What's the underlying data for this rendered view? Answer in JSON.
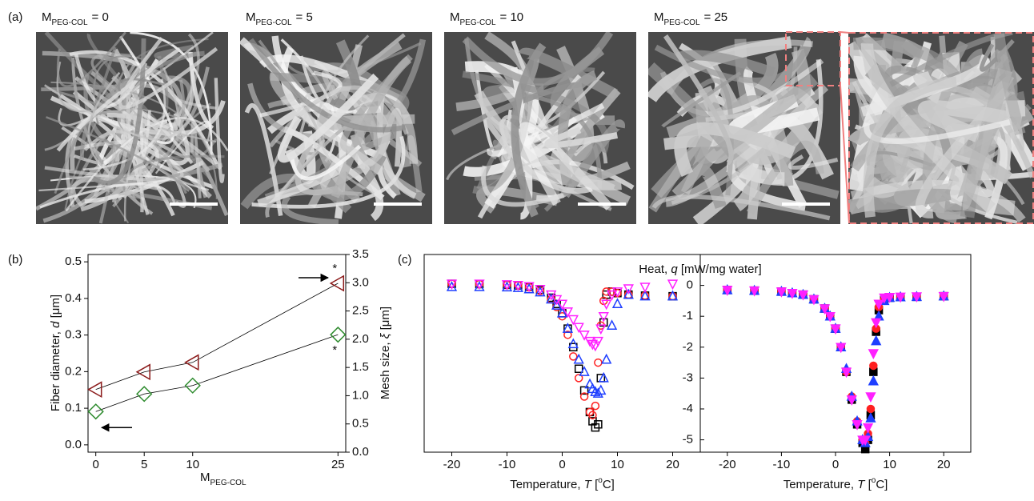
{
  "figure_a": {
    "panel_label": "(a)",
    "images": [
      {
        "symbol": "M",
        "subscript": "PEG-COL",
        "rest": "= 0"
      },
      {
        "symbol": "M",
        "subscript": "PEG-COL",
        "rest": "= 5"
      },
      {
        "symbol": "M",
        "subscript": "PEG-COL",
        "rest": "= 10"
      },
      {
        "symbol": "M",
        "subscript": "PEG-COL",
        "rest": "= 25"
      }
    ]
  },
  "chart_data": [
    {
      "type": "line",
      "panel_label": "(b)",
      "x": [
        0,
        5,
        10,
        25
      ],
      "xlim": [
        -0.8,
        25.8
      ],
      "xticks": [
        0,
        5,
        10,
        25
      ],
      "xlabel": [
        "M",
        "PEG-COL"
      ],
      "ylim": [
        -0.02,
        0.52
      ],
      "yticks": [
        {
          "value": 0,
          "label": "0.0"
        },
        0.1,
        0.2,
        0.3,
        0.4,
        0.5
      ],
      "ylabel": [
        "Fiber diameter, ",
        "d",
        " [μm]"
      ],
      "y2lim": [
        0,
        3.5
      ],
      "y2ticks": [
        {
          "value": 0,
          "label": "0.0"
        },
        0.5,
        {
          "value": 1,
          "label": "1.0"
        },
        1.5,
        {
          "value": 2,
          "label": "2.0"
        },
        2.5,
        {
          "value": 3,
          "label": "3.0"
        },
        3.5
      ],
      "y2label": [
        "Mesh size, ",
        "ξ",
        " [μm]"
      ],
      "series": [
        {
          "color": "#2e8b2e",
          "marker": "diamond",
          "values": [
            0.091,
            0.139,
            0.162,
            0.301
          ]
        },
        {
          "color": "#8b1a1a",
          "marker": "triangle-left",
          "axis": "y2",
          "values": [
            1.11,
            1.42,
            1.59,
            2.99
          ]
        }
      ],
      "annotations": [
        "*",
        "*"
      ]
    },
    {
      "type": "scatter",
      "panel_label": "(c)",
      "x": [
        -20,
        -15,
        -10,
        -8,
        -6,
        -4,
        -2,
        -1,
        0,
        1,
        2,
        3,
        4,
        5,
        5.5,
        6,
        6.5,
        7,
        7.5,
        8,
        9,
        10,
        12,
        15,
        20
      ],
      "xlim": [
        -25,
        25
      ],
      "xticks": [
        -20,
        -10,
        0,
        10,
        20
      ],
      "xlabel": [
        "Temperature, ",
        "T",
        " [",
        "o",
        "C]"
      ],
      "ylim": [
        -5.4,
        1.0
      ],
      "yticks": [
        0,
        -1,
        -2,
        -3,
        -4,
        -5
      ],
      "ylabel": [
        "Heat, ",
        "q",
        " [mW/mg water]"
      ],
      "panels": [
        {
          "filled": false,
          "series": [
            {
              "color": "#000000",
              "marker": "square",
              "values": [
                0.05,
                0.04,
                0.02,
                0,
                -0.05,
                -0.15,
                -0.4,
                -0.6,
                -0.9,
                -1.4,
                -2.0,
                -2.7,
                -3.4,
                -4.1,
                -4.4,
                -4.6,
                -4.5,
                -3.0,
                -1.2,
                -0.3,
                -0.2,
                -0.25,
                -0.3,
                -0.33,
                -0.35
              ]
            },
            {
              "color": "#ff2020",
              "marker": "circle",
              "values": [
                0.05,
                0.04,
                0.02,
                0,
                -0.06,
                -0.18,
                -0.45,
                -0.7,
                -1.0,
                -1.6,
                -2.3,
                -3.0,
                -3.6,
                -4.1,
                -4.2,
                -3.9,
                -2.5,
                -1.3,
                -0.5,
                -0.2,
                -0.2,
                -0.25,
                -0.3,
                -0.33,
                -0.35
              ]
            },
            {
              "color": "#1f3fff",
              "marker": "triangle-up",
              "values": [
                -0.05,
                -0.05,
                -0.06,
                -0.08,
                -0.12,
                -0.22,
                -0.45,
                -0.65,
                -0.9,
                -1.4,
                -1.9,
                -2.4,
                -2.8,
                -3.2,
                -3.35,
                -3.45,
                -3.5,
                -3.4,
                -3.0,
                -2.4,
                -1.3,
                -0.6,
                -0.3,
                -0.35,
                -0.35
              ]
            },
            {
              "color": "#ff20ff",
              "marker": "triangle-down",
              "values": [
                0.05,
                0.05,
                0.03,
                0.01,
                -0.03,
                -0.12,
                -0.3,
                -0.45,
                -0.6,
                -0.85,
                -1.1,
                -1.35,
                -1.6,
                -1.8,
                -1.9,
                -1.95,
                -1.8,
                -1.4,
                -1.0,
                -0.6,
                -0.3,
                -0.2,
                -0.1,
                -0.05,
                0.05
              ]
            }
          ]
        },
        {
          "filled": true,
          "series": [
            {
              "color": "#000000",
              "marker": "square",
              "values": [
                -0.15,
                -0.17,
                -0.2,
                -0.25,
                -0.3,
                -0.45,
                -0.75,
                -1.0,
                -1.4,
                -2.0,
                -2.8,
                -3.7,
                -4.5,
                -5.1,
                -5.3,
                -5.0,
                -4.2,
                -2.8,
                -1.5,
                -0.8,
                -0.45,
                -0.4,
                -0.38,
                -0.37,
                -0.35
              ]
            },
            {
              "color": "#ff2020",
              "marker": "circle",
              "values": [
                -0.15,
                -0.17,
                -0.2,
                -0.25,
                -0.3,
                -0.45,
                -0.75,
                -1.0,
                -1.4,
                -2.0,
                -2.8,
                -3.6,
                -4.4,
                -5.0,
                -5.1,
                -4.8,
                -4.0,
                -2.6,
                -1.4,
                -0.7,
                -0.45,
                -0.4,
                -0.38,
                -0.37,
                -0.35
              ]
            },
            {
              "color": "#1f3fff",
              "marker": "triangle-up",
              "values": [
                -0.15,
                -0.17,
                -0.2,
                -0.25,
                -0.3,
                -0.45,
                -0.75,
                -1.0,
                -1.4,
                -2.0,
                -2.7,
                -3.6,
                -4.4,
                -5.0,
                -5.1,
                -4.9,
                -4.3,
                -3.1,
                -1.8,
                -1.0,
                -0.5,
                -0.4,
                -0.38,
                -0.37,
                -0.35
              ]
            },
            {
              "color": "#ff20ff",
              "marker": "triangle-down",
              "values": [
                -0.15,
                -0.17,
                -0.2,
                -0.25,
                -0.3,
                -0.45,
                -0.75,
                -1.0,
                -1.4,
                -2.0,
                -2.8,
                -3.7,
                -4.5,
                -5.0,
                -5.0,
                -4.6,
                -3.6,
                -2.2,
                -1.2,
                -0.6,
                -0.4,
                -0.38,
                -0.37,
                -0.36,
                -0.35
              ]
            }
          ]
        }
      ]
    }
  ]
}
